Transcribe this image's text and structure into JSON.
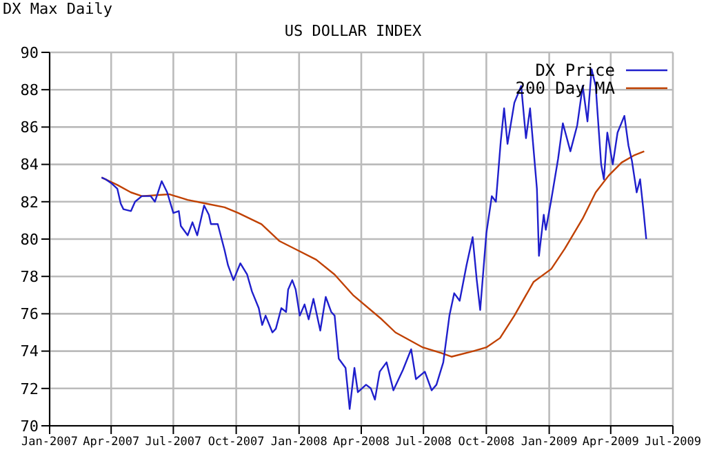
{
  "chart_data": {
    "type": "line",
    "title": "US DOLLAR INDEX",
    "subtitle": "DX Max Daily",
    "xlim": [
      "2007-01",
      "2009-07"
    ],
    "xticks": [
      {
        "value": "2007-01",
        "label": "Jan-2007"
      },
      {
        "value": "2007-04",
        "label": "Apr-2007"
      },
      {
        "value": "2007-07",
        "label": "Jul-2007"
      },
      {
        "value": "2007-10",
        "label": "Oct-2007"
      },
      {
        "value": "2008-01",
        "label": "Jan-2008"
      },
      {
        "value": "2008-04",
        "label": "Apr-2008"
      },
      {
        "value": "2008-07",
        "label": "Jul-2008"
      },
      {
        "value": "2008-10",
        "label": "Oct-2008"
      },
      {
        "value": "2009-01",
        "label": "Jan-2009"
      },
      {
        "value": "2009-04",
        "label": "Apr-2009"
      },
      {
        "value": "2009-07",
        "label": "Jul-2009"
      }
    ],
    "ylim": [
      70,
      90
    ],
    "yticks": [
      70,
      72,
      74,
      76,
      78,
      80,
      82,
      84,
      86,
      88,
      90
    ],
    "grid": true,
    "legend": "top right",
    "marker": "none",
    "line_style": "solid",
    "series": [
      {
        "name": "DX Price",
        "color": "#1f1fcc",
        "x": [
          "2007-03-18",
          "2007-03-24",
          "2007-04-01",
          "2007-04-10",
          "2007-04-15",
          "2007-04-19",
          "2007-04-30",
          "2007-05-06",
          "2007-05-16",
          "2007-05-29",
          "2007-06-04",
          "2007-06-14",
          "2007-06-22",
          "2007-07-01",
          "2007-07-09",
          "2007-07-12",
          "2007-07-22",
          "2007-07-29",
          "2007-08-05",
          "2007-08-15",
          "2007-08-22",
          "2007-08-25",
          "2007-09-04",
          "2007-09-14",
          "2007-09-19",
          "2007-09-27",
          "2007-10-07",
          "2007-10-17",
          "2007-10-24",
          "2007-11-03",
          "2007-11-08",
          "2007-11-13",
          "2007-11-23",
          "2007-11-28",
          "2007-12-06",
          "2007-12-13",
          "2007-12-16",
          "2007-12-22",
          "2007-12-27",
          "2008-01-02",
          "2008-01-09",
          "2008-01-15",
          "2008-01-22",
          "2008-02-01",
          "2008-02-09",
          "2008-02-17",
          "2008-02-22",
          "2008-02-28",
          "2008-03-09",
          "2008-03-15",
          "2008-03-22",
          "2008-03-27",
          "2008-04-08",
          "2008-04-15",
          "2008-04-21",
          "2008-04-28",
          "2008-05-08",
          "2008-05-18",
          "2008-06-01",
          "2008-06-13",
          "2008-06-20",
          "2008-07-03",
          "2008-07-13",
          "2008-07-20",
          "2008-07-30",
          "2008-08-08",
          "2008-08-15",
          "2008-08-23",
          "2008-09-02",
          "2008-09-11",
          "2008-09-17",
          "2008-09-22",
          "2008-10-01",
          "2008-10-09",
          "2008-10-15",
          "2008-10-22",
          "2008-10-27",
          "2008-11-01",
          "2008-11-11",
          "2008-11-21",
          "2008-11-28",
          "2008-12-04",
          "2008-12-14",
          "2008-12-17",
          "2008-12-24",
          "2008-12-27",
          "2009-01-04",
          "2009-01-14",
          "2009-01-21",
          "2009-02-01",
          "2009-02-11",
          "2009-02-19",
          "2009-02-26",
          "2009-03-04",
          "2009-03-10",
          "2009-03-18",
          "2009-03-22",
          "2009-03-27",
          "2009-04-04",
          "2009-04-11",
          "2009-04-21",
          "2009-04-27",
          "2009-05-02",
          "2009-05-09",
          "2009-05-14",
          "2009-05-19",
          "2009-05-23"
        ],
        "values": [
          83.3,
          83.2,
          83.0,
          82.7,
          81.9,
          81.6,
          81.5,
          82.0,
          82.3,
          82.3,
          82.0,
          83.1,
          82.5,
          81.4,
          81.5,
          80.7,
          80.2,
          80.9,
          80.2,
          81.8,
          81.3,
          80.8,
          80.8,
          79.4,
          78.6,
          77.8,
          78.7,
          78.1,
          77.2,
          76.3,
          75.4,
          75.9,
          75.0,
          75.2,
          76.3,
          76.1,
          77.3,
          77.8,
          77.3,
          75.9,
          76.5,
          75.7,
          76.8,
          75.1,
          76.9,
          76.1,
          75.9,
          73.6,
          73.1,
          70.9,
          73.1,
          71.8,
          72.2,
          72.0,
          71.4,
          72.9,
          73.4,
          71.9,
          73.0,
          74.1,
          72.5,
          72.9,
          71.9,
          72.2,
          73.4,
          75.9,
          77.1,
          76.7,
          78.6,
          80.1,
          77.8,
          76.2,
          80.3,
          82.3,
          82.0,
          85.2,
          87.0,
          85.1,
          87.3,
          88.2,
          85.4,
          87.0,
          82.7,
          79.1,
          81.3,
          80.5,
          82.1,
          84.3,
          86.2,
          84.7,
          86.1,
          88.2,
          86.3,
          89.1,
          88.2,
          84.0,
          83.2,
          85.7,
          84.0,
          85.7,
          86.6,
          85.0,
          84.2,
          82.5,
          83.2,
          81.5,
          80.0
        ]
      },
      {
        "name": "200 Day MA",
        "color": "#c04000",
        "x": [
          "2007-03-18",
          "2007-04-10",
          "2007-04-30",
          "2007-05-16",
          "2007-06-25",
          "2007-07-22",
          "2007-08-18",
          "2007-09-14",
          "2007-10-04",
          "2007-11-07",
          "2007-12-03",
          "2007-12-30",
          "2008-01-26",
          "2008-02-22",
          "2008-03-20",
          "2008-05-01",
          "2008-05-21",
          "2008-06-30",
          "2008-07-27",
          "2008-08-11",
          "2008-09-12",
          "2008-10-01",
          "2008-10-21",
          "2008-11-11",
          "2008-12-09",
          "2009-01-04",
          "2009-01-24",
          "2009-02-19",
          "2009-03-10",
          "2009-03-29",
          "2009-04-17",
          "2009-05-06",
          "2009-05-20"
        ],
        "values": [
          83.3,
          82.9,
          82.5,
          82.3,
          82.4,
          82.1,
          81.9,
          81.7,
          81.4,
          80.8,
          79.9,
          79.4,
          78.9,
          78.1,
          77.0,
          75.7,
          75.0,
          74.2,
          73.9,
          73.7,
          74.0,
          74.2,
          74.7,
          75.9,
          77.7,
          78.4,
          79.5,
          81.1,
          82.5,
          83.4,
          84.1,
          84.5,
          84.7
        ]
      }
    ]
  }
}
